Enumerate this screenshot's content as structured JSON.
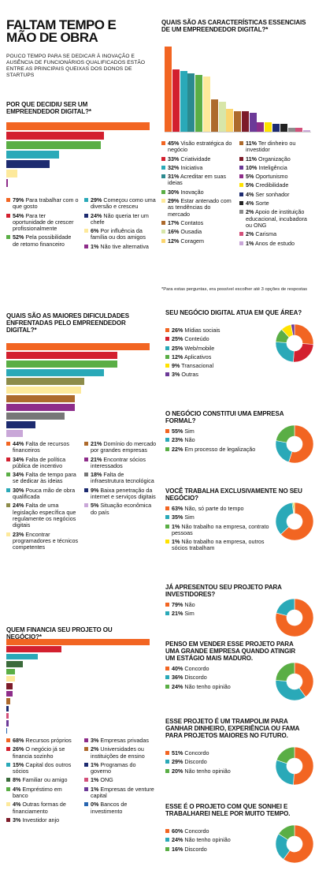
{
  "title": "FALTAM TEMPO E MÃO DE OBRA",
  "subtitle": "POUCO TEMPO PARA SE DEDICAR À INOVAÇÃO E AUSÊNCIA DE FUNCIONÁRIOS QUALIFICADOS ESTÃO ENTRE AS PRINCIPAIS QUEIXAS DOS DONOS DE STARTUPS",
  "colors": {
    "orange": "#f26522",
    "red": "#d3202f",
    "teal": "#2aa9b8",
    "green": "#5aae45",
    "yellow": "#ffe200",
    "cream": "#fde99b",
    "brown": "#ad6a2c",
    "navy": "#1d2b70",
    "purple": "#8e2d8a",
    "violet": "#6c3a98",
    "lilac": "#c9a7d8",
    "gray": "#8c8c8c",
    "lightgray": "#d9d9d9",
    "maroon": "#7d1c2a",
    "olive": "#8d8c4a",
    "darkgreen": "#3b6b3b",
    "blue": "#2966b0"
  },
  "chart_data": [
    {
      "id": "motivo",
      "type": "bar",
      "title": "POR QUE DECIDIU SER UM EMPREENDEDOR DIGITAL?*",
      "categories": [
        "Para trabalhar com o que gosto",
        "Para ter oportunidade de crescer profissionalmente",
        "Pela possibilidade de retorno financeiro",
        "Começou como uma diversão e cresceu",
        "Não queria ter um chefe",
        "Por influência da família ou dos amigos",
        "Não tive alternativa"
      ],
      "values": [
        79,
        54,
        52,
        29,
        24,
        6,
        1
      ],
      "labels": [
        "79%",
        "54%",
        "52%",
        "29%",
        "24%",
        "6%",
        "1%"
      ],
      "colors": [
        "#f26522",
        "#d3202f",
        "#5aae45",
        "#2aa9b8",
        "#1d2b70",
        "#fde99b",
        "#8e2d8a"
      ]
    },
    {
      "id": "caracteristicas",
      "type": "bar",
      "title": "QUAIS SÃO AS CARACTERÍSTICAS ESSENCIAIS DE UM EMPREENDEDOR DIGITAL?*",
      "categories": [
        "Visão estratégica do negócio",
        "Criatividade",
        "Iniciativa",
        "Acreditar em suas ideias",
        "Inovação",
        "Estar antenado com as tendências do mercado",
        "Contatos",
        "Ousadia",
        "Coragem",
        "Ter dinheiro ou investidor",
        "Organização",
        "Inteligência",
        "Oportunismo",
        "Credibilidade",
        "Ser sonhador",
        "Sorte",
        "Apoio de instituição educacional, incubadora ou ONG",
        "Carisma",
        "Anos de estudo"
      ],
      "values": [
        45,
        33,
        32,
        31,
        30,
        29,
        17,
        16,
        12,
        11,
        11,
        10,
        5,
        5,
        4,
        4,
        2,
        2,
        1
      ],
      "labels": [
        "45%",
        "33%",
        "32%",
        "31%",
        "30%",
        "29%",
        "17%",
        "16%",
        "12%",
        "11%",
        "11%",
        "10%",
        "5%",
        "5%",
        "4%",
        "4%",
        "2%",
        "2%",
        "1%"
      ],
      "colors": [
        "#f26522",
        "#d3202f",
        "#2aa9b8",
        "#2b8a8f",
        "#5aae45",
        "#fde99b",
        "#ad6a2c",
        "#d8e6a8",
        "#fbd56e",
        "#ad6a2c",
        "#7d1c2a",
        "#6c3a98",
        "#8e2d8a",
        "#ffe200",
        "#1d2b70",
        "#222222",
        "#8c8c8c",
        "#d3507a",
        "#c9a7d8"
      ],
      "note": "*Para estas perguntas, era possível escolher até 3 opções de respostas"
    },
    {
      "id": "dificuldades",
      "type": "bar",
      "title": "QUAIS SÃO AS MAIORES DIFICULDADES ENFRENTADAS PELO EMPREENDEDOR DIGITAL?*",
      "categories": [
        "Falta de recursos financeiros",
        "Falta de política pública de incentivo",
        "Falta de tempo para se dedicar às ideias",
        "Pouca mão de obra qualificada",
        "Falta de uma legislação específica que regulamente os negócios digitais",
        "Encontrar programadores e técnicos competentes",
        "Domínio do mercado por grandes empresas",
        "Encontrar sócios interessados",
        "Falta de infraestrutura tecnológica",
        "Baixa penetração da internet e serviços digitais",
        "Situação econômica do país"
      ],
      "values": [
        44,
        34,
        34,
        30,
        24,
        23,
        21,
        21,
        18,
        9,
        5
      ],
      "labels": [
        "44%",
        "34%",
        "34%",
        "30%",
        "24%",
        "23%",
        "21%",
        "21%",
        "18%",
        "9%",
        "5%"
      ],
      "colors": [
        "#f26522",
        "#d3202f",
        "#5aae45",
        "#2aa9b8",
        "#8d8c4a",
        "#fde99b",
        "#ad6a2c",
        "#8e2d8a",
        "#777777",
        "#1d2b70",
        "#c9a7d8"
      ]
    },
    {
      "id": "financiamento",
      "type": "bar",
      "title": "QUEM FINANCIA SEU PROJETO OU NEGÓCIO?*",
      "categories": [
        "Recursos próprios",
        "O negócio já se financia sozinho",
        "Capital dos outros sócios",
        "Familiar ou amigo",
        "Empréstimo em banco",
        "Outras formas de financiamento",
        "Investidor anjo",
        "Empresas privadas",
        "Universidades ou instituições de ensino",
        "Programas do governo",
        "ONG",
        "Empresas de venture capital",
        "Bancos de investimento"
      ],
      "values": [
        68,
        26,
        15,
        8,
        4,
        4,
        3,
        3,
        2,
        1,
        1,
        1,
        0
      ],
      "labels": [
        "68%",
        "26%",
        "15%",
        "8%",
        "4%",
        "4%",
        "3%",
        "3%",
        "2%",
        "1%",
        "1%",
        "1%",
        "0%"
      ],
      "colors": [
        "#f26522",
        "#d3202f",
        "#2aa9b8",
        "#3b6b3b",
        "#5aae45",
        "#fde99b",
        "#7d1c2a",
        "#8e2d8a",
        "#ad6a2c",
        "#1d2b70",
        "#d3507a",
        "#6c3a98",
        "#2966b0"
      ]
    },
    {
      "id": "area",
      "type": "pie",
      "title": "SEU NEGÓCIO DIGITAL ATUA EM QUE ÁREA?",
      "categories": [
        "Mídias sociais",
        "Conteúdo",
        "Web/mobile",
        "Aplicativos",
        "Transacional",
        "Outras"
      ],
      "values": [
        26,
        25,
        25,
        12,
        9,
        3
      ],
      "labels": [
        "26%",
        "25%",
        "25%",
        "12%",
        "9%",
        "3%"
      ],
      "colors": [
        "#f26522",
        "#d3202f",
        "#2aa9b8",
        "#5aae45",
        "#ffe200",
        "#6c3a98"
      ]
    },
    {
      "id": "empresa",
      "type": "pie",
      "title": "O NEGÓCIO CONSTITUI UMA EMPRESA FORMAL?",
      "categories": [
        "Sim",
        "Não",
        "Em processo de legalização"
      ],
      "values": [
        55,
        23,
        22
      ],
      "labels": [
        "55%",
        "23%",
        "22%"
      ],
      "colors": [
        "#f26522",
        "#2aa9b8",
        "#5aae45"
      ]
    },
    {
      "id": "exclusivo",
      "type": "pie",
      "title": "VOCÊ TRABALHA EXCLUSIVAMENTE NO SEU NEGÓCIO?",
      "categories": [
        "Não, só parte do tempo",
        "Sim",
        "Não trabalho na empresa, contrato pessoas",
        "Não trabalho na empresa, outros sócios trabalham"
      ],
      "values": [
        63,
        35,
        1,
        1
      ],
      "labels": [
        "63%",
        "35%",
        "1%",
        "1%"
      ],
      "colors": [
        "#f26522",
        "#2aa9b8",
        "#5aae45",
        "#ffe200"
      ]
    },
    {
      "id": "investidores",
      "type": "pie",
      "title": "JÁ APRESENTOU SEU PROJETO PARA INVESTIDORES?",
      "categories": [
        "Não",
        "Sim"
      ],
      "values": [
        79,
        21
      ],
      "labels": [
        "79%",
        "21%"
      ],
      "colors": [
        "#f26522",
        "#2aa9b8"
      ]
    },
    {
      "id": "vender",
      "type": "pie",
      "title": "PENSO EM VENDER ESSE PROJETO PARA UMA GRANDE EMPRESA QUANDO ATINGIR UM ESTÁGIO MAIS MADURO.",
      "categories": [
        "Concordo",
        "Discordo",
        "Não tenho opinião"
      ],
      "values": [
        40,
        36,
        24
      ],
      "labels": [
        "40%",
        "36%",
        "24%"
      ],
      "colors": [
        "#f26522",
        "#2aa9b8",
        "#5aae45"
      ]
    },
    {
      "id": "trampolim",
      "type": "pie",
      "title": "ESSE PROJETO É UM TRAMPOLIM PARA GANHAR DINHEIRO, EXPERIÊNCIA OU FAMA PARA PROJETOS MAIORES NO FUTURO.",
      "categories": [
        "Concordo",
        "Discordo",
        "Não tenho opinião"
      ],
      "values": [
        51,
        29,
        20
      ],
      "labels": [
        "51%",
        "29%",
        "20%"
      ],
      "colors": [
        "#f26522",
        "#2aa9b8",
        "#5aae45"
      ]
    },
    {
      "id": "sonho",
      "type": "pie",
      "title": "ESSE É O PROJETO COM QUE SONHEI E TRABALHAREI NELE POR MUITO TEMPO.",
      "categories": [
        "Concordo",
        "Não tenho opinião",
        "Discordo"
      ],
      "values": [
        60,
        24,
        16
      ],
      "labels": [
        "60%",
        "24%",
        "16%"
      ],
      "colors": [
        "#f26522",
        "#2aa9b8",
        "#5aae45"
      ]
    }
  ]
}
